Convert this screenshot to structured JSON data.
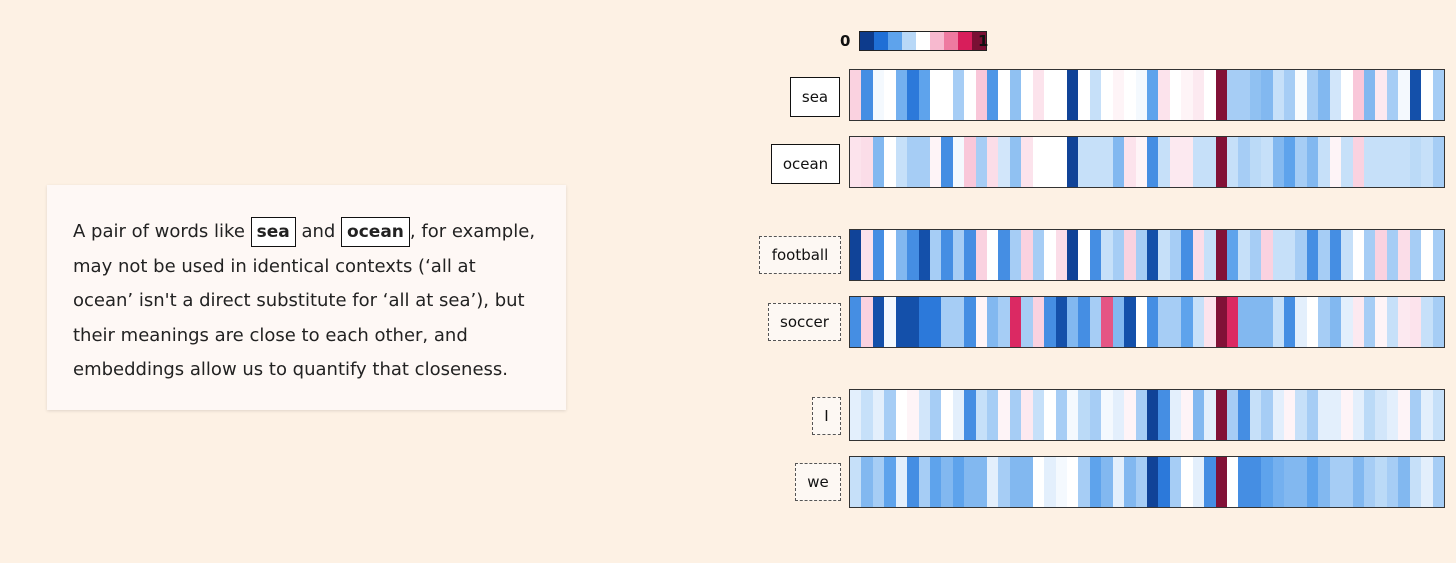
{
  "card": {
    "text_a": "A pair of words like ",
    "word1": "sea",
    "text_b": " and ",
    "word2": "ocean",
    "text_c": ", for example, may not be used in identical contexts (‘all at ocean’ isn't a direct substitute for ‘all at sea’), but their meanings are close to each other, and embeddings allow us to quantify that closeness."
  },
  "scale": {
    "min_label": "0",
    "max_label": "1",
    "colors": [
      "#0d3b8c",
      "#1f6fd6",
      "#5ea3ec",
      "#b8d8f7",
      "#ffffff",
      "#f7b9cf",
      "#ee7aa0",
      "#d81e5b",
      "#7a1034"
    ]
  },
  "rows": [
    {
      "word": "sea",
      "style": "solid",
      "values": [
        0.58,
        0.2,
        0.48,
        0.5,
        0.28,
        0.15,
        0.25,
        0.5,
        0.5,
        0.35,
        0.5,
        0.6,
        0.22,
        0.5,
        0.32,
        0.5,
        0.55,
        0.5,
        0.5,
        0.02,
        0.5,
        0.4,
        0.5,
        0.52,
        0.5,
        0.48,
        0.25,
        0.55,
        0.5,
        0.52,
        0.54,
        0.5,
        0.99,
        0.35,
        0.35,
        0.32,
        0.3,
        0.4,
        0.35,
        0.49,
        0.35,
        0.3,
        0.42,
        0.5,
        0.6,
        0.3,
        0.54,
        0.35,
        0.48,
        0.05,
        0.5,
        0.35
      ]
    },
    {
      "word": "ocean",
      "style": "solid",
      "values": [
        0.55,
        0.56,
        0.3,
        0.5,
        0.4,
        0.35,
        0.35,
        0.52,
        0.2,
        0.48,
        0.6,
        0.35,
        0.56,
        0.42,
        0.32,
        0.55,
        0.5,
        0.5,
        0.5,
        0.02,
        0.4,
        0.4,
        0.4,
        0.3,
        0.55,
        0.52,
        0.2,
        0.4,
        0.54,
        0.54,
        0.4,
        0.4,
        0.99,
        0.4,
        0.35,
        0.38,
        0.4,
        0.3,
        0.25,
        0.35,
        0.3,
        0.4,
        0.52,
        0.4,
        0.58,
        0.4,
        0.4,
        0.4,
        0.4,
        0.38,
        0.4,
        0.35
      ]
    },
    {
      "word": "football",
      "style": "dashed",
      "values": [
        0.02,
        0.55,
        0.2,
        0.5,
        0.3,
        0.2,
        0.05,
        0.35,
        0.2,
        0.35,
        0.2,
        0.58,
        0.5,
        0.2,
        0.35,
        0.58,
        0.35,
        0.5,
        0.56,
        0.02,
        0.5,
        0.2,
        0.4,
        0.35,
        0.58,
        0.35,
        0.05,
        0.4,
        0.35,
        0.2,
        0.56,
        0.4,
        0.99,
        0.25,
        0.4,
        0.35,
        0.58,
        0.4,
        0.4,
        0.35,
        0.2,
        0.35,
        0.2,
        0.4,
        0.5,
        0.35,
        0.58,
        0.35,
        0.56,
        0.35,
        0.5,
        0.35
      ]
    },
    {
      "word": "soccer",
      "style": "dashed",
      "values": [
        0.2,
        0.58,
        0.05,
        0.48,
        0.05,
        0.05,
        0.15,
        0.15,
        0.35,
        0.35,
        0.2,
        0.52,
        0.3,
        0.35,
        0.86,
        0.35,
        0.58,
        0.2,
        0.05,
        0.3,
        0.2,
        0.35,
        0.8,
        0.3,
        0.05,
        0.5,
        0.2,
        0.35,
        0.35,
        0.25,
        0.4,
        0.55,
        0.99,
        0.86,
        0.3,
        0.3,
        0.3,
        0.4,
        0.2,
        0.45,
        0.5,
        0.35,
        0.3,
        0.45,
        0.54,
        0.35,
        0.52,
        0.4,
        0.54,
        0.55,
        0.4,
        0.35
      ]
    },
    {
      "word": "I",
      "style": "dashed",
      "values": [
        0.45,
        0.4,
        0.45,
        0.35,
        0.5,
        0.52,
        0.42,
        0.35,
        0.5,
        0.45,
        0.2,
        0.4,
        0.35,
        0.52,
        0.35,
        0.54,
        0.4,
        0.5,
        0.35,
        0.48,
        0.38,
        0.35,
        0.48,
        0.45,
        0.52,
        0.35,
        0.02,
        0.2,
        0.45,
        0.52,
        0.3,
        0.45,
        0.99,
        0.35,
        0.2,
        0.4,
        0.35,
        0.45,
        0.52,
        0.4,
        0.35,
        0.45,
        0.45,
        0.52,
        0.45,
        0.38,
        0.42,
        0.45,
        0.52,
        0.35,
        0.45,
        0.4
      ]
    },
    {
      "word": "we",
      "style": "dashed",
      "values": [
        0.4,
        0.3,
        0.35,
        0.25,
        0.45,
        0.2,
        0.35,
        0.25,
        0.3,
        0.25,
        0.3,
        0.3,
        0.45,
        0.35,
        0.3,
        0.3,
        0.5,
        0.45,
        0.48,
        0.5,
        0.35,
        0.25,
        0.3,
        0.45,
        0.3,
        0.35,
        0.02,
        0.15,
        0.35,
        0.5,
        0.45,
        0.2,
        0.99,
        0.5,
        0.2,
        0.2,
        0.25,
        0.28,
        0.3,
        0.3,
        0.25,
        0.3,
        0.35,
        0.35,
        0.3,
        0.35,
        0.38,
        0.35,
        0.3,
        0.4,
        0.45,
        0.35
      ]
    }
  ]
}
